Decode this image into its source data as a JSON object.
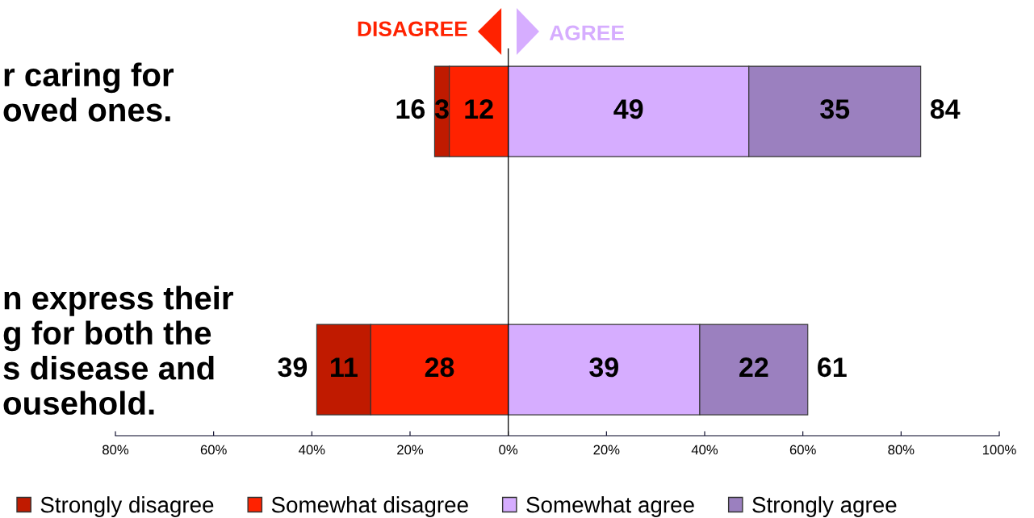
{
  "chart_data": {
    "type": "bar",
    "orientation": "horizontal",
    "categories": [
      "r caring for\noved ones.",
      "n express their\ng for both the\ns disease and\nousehold."
    ],
    "series": [
      {
        "name": "Strongly disagree",
        "color": "#c01a00",
        "values": [
          3,
          11
        ],
        "base": [
          -15,
          -39
        ]
      },
      {
        "name": "Somewhat disagree",
        "color": "#ff2200",
        "values": [
          12,
          28
        ],
        "base": [
          -12,
          -28
        ]
      },
      {
        "name": "Somewhat agree",
        "color": "#d6adff",
        "values": [
          49,
          39
        ],
        "base": [
          0,
          0
        ]
      },
      {
        "name": "Strongly agree",
        "color": "#9b80bf",
        "values": [
          35,
          22
        ],
        "base": [
          49,
          39
        ]
      }
    ],
    "data_labels": true,
    "xlim": [
      -80,
      100
    ],
    "xticks": [
      {
        "value": -80,
        "label": "80%"
      },
      {
        "value": -60,
        "label": "60%"
      },
      {
        "value": -40,
        "label": "40%"
      },
      {
        "value": -20,
        "label": "20%"
      },
      {
        "value": 0,
        "label": "0%"
      },
      {
        "value": 20,
        "label": "20%"
      },
      {
        "value": 40,
        "label": "40%"
      },
      {
        "value": 60,
        "label": "60%"
      },
      {
        "value": 80,
        "label": "80%"
      },
      {
        "value": 100,
        "label": "100%"
      }
    ],
    "ref_lines": [
      {
        "axis": "x",
        "value": 0,
        "color": "#000000"
      }
    ],
    "annotations": [
      "DISAGREE",
      "AGREE",
      {
        "text": "16",
        "x": -15,
        "y": "r caring for\noved ones."
      },
      {
        "text": "84",
        "x": 84,
        "y": "r caring for\noved ones."
      },
      {
        "text": "39",
        "x": -39,
        "y": "n express their\ng for both the\ns disease and\nousehold."
      },
      {
        "text": "61",
        "x": 61,
        "y": "n express their\ng for both the\ns disease and\nousehold."
      }
    ],
    "legend": "bottom",
    "grid": false
  }
}
